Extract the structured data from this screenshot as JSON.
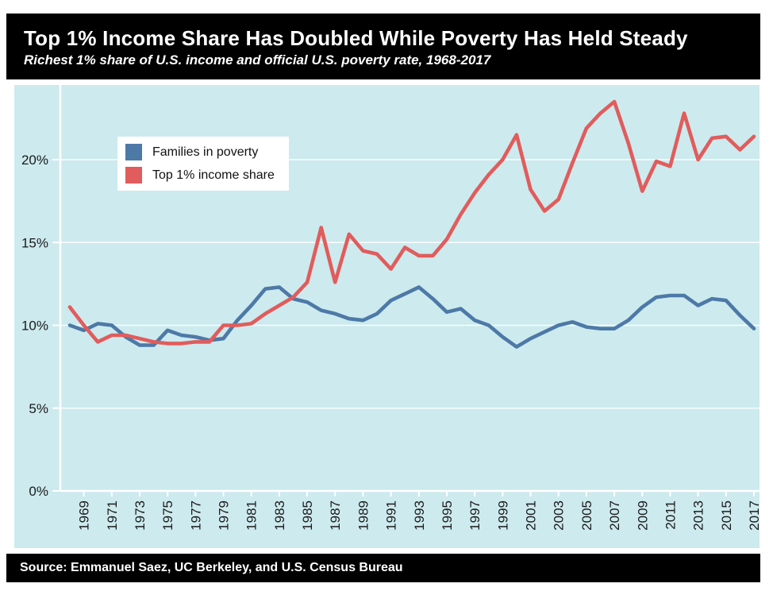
{
  "footer": {
    "source": "Source: Emmanuel Saez, UC Berkeley, and U.S. Census Bureau"
  },
  "chart_data": {
    "type": "line",
    "title": "Top 1% Income Share Has Doubled While Poverty Has Held Steady",
    "subtitle": "Richest 1% share of U.S. income and official U.S. poverty rate, 1968-2017",
    "xlabel": "",
    "ylabel": "",
    "x": [
      1968,
      1969,
      1970,
      1971,
      1972,
      1973,
      1974,
      1975,
      1976,
      1977,
      1978,
      1979,
      1980,
      1981,
      1982,
      1983,
      1984,
      1985,
      1986,
      1987,
      1988,
      1989,
      1990,
      1991,
      1992,
      1993,
      1994,
      1995,
      1996,
      1997,
      1998,
      1999,
      2000,
      2001,
      2002,
      2003,
      2004,
      2005,
      2006,
      2007,
      2008,
      2009,
      2010,
      2011,
      2012,
      2013,
      2014,
      2015,
      2016,
      2017
    ],
    "series": [
      {
        "id": "families-in-poverty",
        "name": "Families in poverty",
        "color": "#4d79a7",
        "values": [
          10.0,
          9.7,
          10.1,
          10.0,
          9.3,
          8.8,
          8.8,
          9.7,
          9.4,
          9.3,
          9.1,
          9.2,
          10.3,
          11.2,
          12.2,
          12.3,
          11.6,
          11.4,
          10.9,
          10.7,
          10.4,
          10.3,
          10.7,
          11.5,
          11.9,
          12.3,
          11.6,
          10.8,
          11.0,
          10.3,
          10.0,
          9.3,
          8.7,
          9.2,
          9.6,
          10.0,
          10.2,
          9.9,
          9.8,
          9.8,
          10.3,
          11.1,
          11.7,
          11.8,
          11.8,
          11.2,
          11.6,
          11.5,
          10.6,
          9.8
        ]
      },
      {
        "id": "top-1-income-share",
        "name": "Top 1% income share",
        "color": "#e15c5c",
        "values": [
          11.1,
          10.0,
          9.0,
          9.4,
          9.4,
          9.2,
          9.0,
          8.9,
          8.9,
          9.0,
          9.0,
          10.0,
          10.0,
          10.1,
          10.7,
          11.2,
          11.7,
          12.6,
          15.9,
          12.6,
          15.5,
          14.5,
          14.3,
          13.4,
          14.7,
          14.2,
          14.2,
          15.2,
          16.7,
          18.0,
          19.1,
          20.0,
          21.5,
          18.2,
          16.9,
          17.6,
          19.8,
          21.9,
          22.8,
          23.5,
          21.0,
          18.1,
          19.9,
          19.6,
          22.8,
          20.0,
          21.3,
          21.4,
          20.6,
          21.4
        ]
      }
    ],
    "x_tick_labels": [
      "1969",
      "1971",
      "1973",
      "1975",
      "1977",
      "1979",
      "1981",
      "1983",
      "1985",
      "1987",
      "1989",
      "1991",
      "1993",
      "1995",
      "1997",
      "1999",
      "2001",
      "2003",
      "2005",
      "2007",
      "2009",
      "2011",
      "2013",
      "2015",
      "2017"
    ],
    "y_ticks": [
      {
        "value": 0,
        "label": "0%"
      },
      {
        "value": 5,
        "label": "5%"
      },
      {
        "value": 10,
        "label": "10%"
      },
      {
        "value": 15,
        "label": "15%"
      },
      {
        "value": 20,
        "label": "20%"
      }
    ],
    "ylim": [
      0,
      24.5
    ],
    "xlim": [
      1967.3,
      2017.4
    ],
    "grid": true,
    "legend_position": "top-left",
    "colors": {
      "panel_background": "#cdeaee",
      "grid": "#ffffff",
      "axis": "#ffffff",
      "tick_text": "#1a1a1a",
      "banner_background": "#000000",
      "banner_text": "#ffffff",
      "legend_background": "#ffffff"
    }
  }
}
